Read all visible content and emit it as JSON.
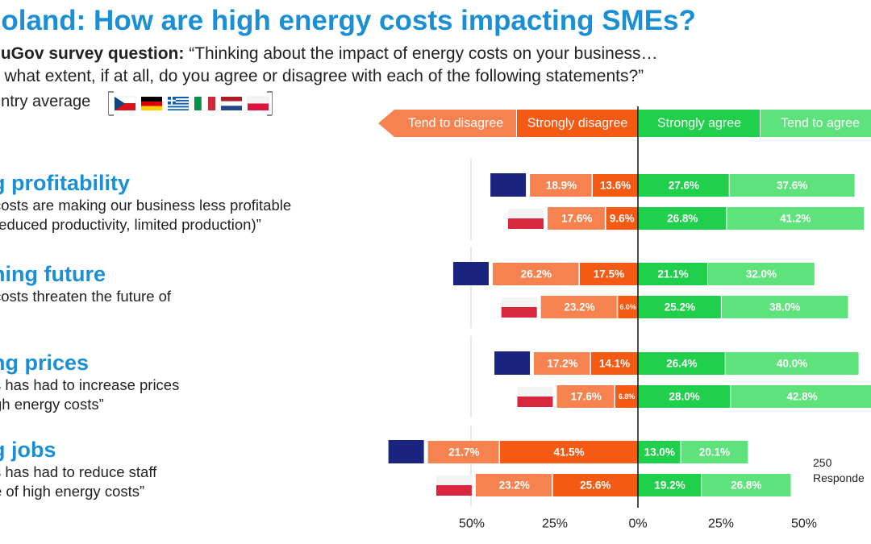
{
  "title": "Poland: How are high energy costs impacting SMEs?",
  "survey": {
    "lead": "ouGov survey question:",
    "text_line1": "“Thinking about the impact of energy costs on your business…",
    "text_line2": "o what extent, if at all, do you agree or disagree with each of the following statements?”"
  },
  "country_average_label": "untry average",
  "flags": [
    "czech-flag",
    "germany-flag",
    "greece-flag",
    "italy-flag",
    "netherlands-flag",
    "poland-flag"
  ],
  "sections": [
    {
      "title": "g profitability",
      "quote_line1": "costs are making our business less profitable",
      "quote_line2": "reduced productivity, limited production)”"
    },
    {
      "title": "ning future",
      "quote_line1": "costs threaten the future of",
      "quote_line2": "”"
    },
    {
      "title": "ng prices",
      "quote_line1": "s has had to increase prices",
      "quote_line2": "gh energy costs”"
    },
    {
      "title": "g jobs",
      "quote_line1": "s has had to reduce staff",
      "quote_line2": "e of high energy costs”"
    }
  ],
  "responders": {
    "line1": "250",
    "line2": "Responde"
  },
  "colors": {
    "tend_disagree": "#f6834f",
    "strongly_disagree": "#f55a14",
    "strongly_agree": "#20cf4c",
    "tend_agree": "#5ee27b",
    "avg_marker": "#1a237e",
    "title_blue": "#1a8fd6"
  },
  "chart_data": {
    "type": "bar",
    "orientation": "horizontal-diverging",
    "legend": [
      "Tend to disagree",
      "Strongly disagree",
      "Strongly agree",
      "Tend to agree"
    ],
    "legend_placement": "top",
    "x_tick_labels": [
      "50%",
      "25%",
      "0%",
      "25%",
      "50%"
    ],
    "x_range": [
      -50,
      50
    ],
    "rows": [
      {
        "group": 0,
        "kind": "country-average",
        "tend_disagree": 18.9,
        "strongly_disagree": 13.6,
        "strongly_agree": 27.6,
        "tend_agree": 37.6
      },
      {
        "group": 0,
        "kind": "poland",
        "tend_disagree": 17.6,
        "strongly_disagree": 9.6,
        "strongly_agree": 26.8,
        "tend_agree": 41.2
      },
      {
        "group": 1,
        "kind": "country-average",
        "tend_disagree": 26.2,
        "strongly_disagree": 17.5,
        "strongly_agree": 21.1,
        "tend_agree": 32.0
      },
      {
        "group": 1,
        "kind": "poland",
        "tend_disagree": 23.2,
        "strongly_disagree": 6.0,
        "strongly_agree": 25.2,
        "tend_agree": 38.0
      },
      {
        "group": 2,
        "kind": "country-average",
        "tend_disagree": 17.2,
        "strongly_disagree": 14.1,
        "strongly_agree": 26.4,
        "tend_agree": 40.0
      },
      {
        "group": 2,
        "kind": "poland",
        "tend_disagree": 17.6,
        "strongly_disagree": 6.8,
        "strongly_agree": 28.0,
        "tend_agree": 42.8
      },
      {
        "group": 3,
        "kind": "country-average",
        "tend_disagree": 21.7,
        "strongly_disagree": 41.5,
        "strongly_agree": 13.0,
        "tend_agree": 20.1
      },
      {
        "group": 3,
        "kind": "poland",
        "tend_disagree": 23.2,
        "strongly_disagree": 25.6,
        "strongly_agree": 19.2,
        "tend_agree": 26.8
      }
    ]
  }
}
